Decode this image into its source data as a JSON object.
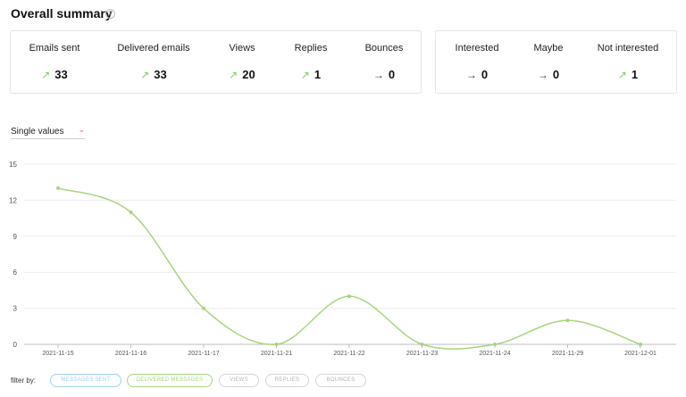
{
  "summary": {
    "title": "Overall summary",
    "help_icon": "question-circle-icon",
    "stats": [
      {
        "label": "Emails sent",
        "value": "33",
        "trend": "up"
      },
      {
        "label": "Delivered emails",
        "value": "33",
        "trend": "up"
      },
      {
        "label": "Views",
        "value": "20",
        "trend": "up"
      },
      {
        "label": "Replies",
        "value": "1",
        "trend": "up"
      },
      {
        "label": "Bounces",
        "value": "0",
        "trend": "flat"
      }
    ],
    "response_stats": [
      {
        "label": "Interested",
        "value": "0",
        "trend": "flat"
      },
      {
        "label": "Maybe",
        "value": "0",
        "trend": "flat"
      },
      {
        "label": "Not interested",
        "value": "1",
        "trend": "up"
      }
    ],
    "colors": {
      "trend_up": "#7fcf63",
      "trend_flat": "#333333"
    }
  },
  "view_select": {
    "selected": "Single values"
  },
  "filter": {
    "label": "filter by:",
    "chips": [
      {
        "label": "MESSAGES SENT",
        "active": true,
        "color": "#9fd0ea"
      },
      {
        "label": "DELIVERED MESSAGES",
        "active": true,
        "color": "#a6d67c"
      },
      {
        "label": "VIEWS",
        "active": false,
        "color": "#d5d5d5"
      },
      {
        "label": "REPLIES",
        "active": false,
        "color": "#d5d5d5"
      },
      {
        "label": "BOUNCES",
        "active": false,
        "color": "#d5d5d5"
      }
    ]
  },
  "chart_data": {
    "type": "line",
    "x": [
      "2021-11-15",
      "2021-11-16",
      "2021-11-17",
      "2021-11-21",
      "2021-11-22",
      "2021-11-23",
      "2021-11-24",
      "2021-11-29",
      "2021-12-01"
    ],
    "series": [
      {
        "values": [
          13,
          11,
          3,
          0,
          4,
          0,
          0,
          2,
          0
        ],
        "color": "#a6d67c"
      }
    ],
    "yticks": [
      "0",
      "3",
      "6",
      "9",
      "12",
      "15"
    ],
    "ylim": [
      0,
      15
    ],
    "grid": true
  }
}
